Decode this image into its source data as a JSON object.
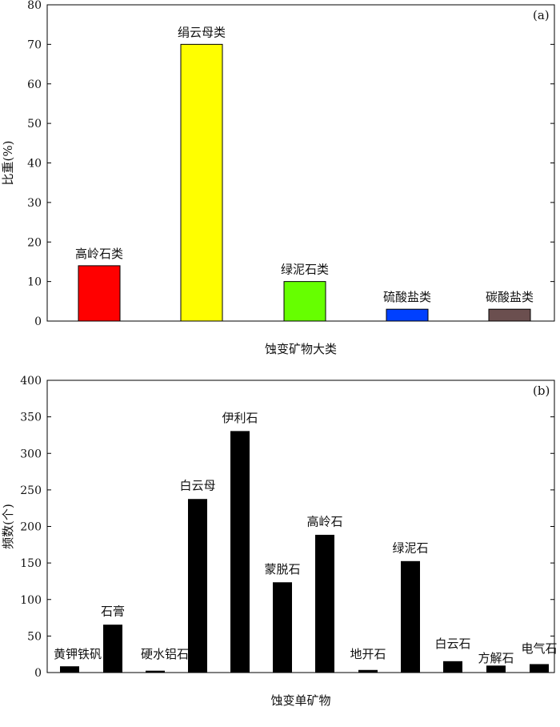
{
  "chart_data": [
    {
      "type": "bar",
      "panel_label": "(a)",
      "xlabel": "蚀变矿物大类",
      "ylabel": "比重(%)",
      "ylim": [
        0,
        80
      ],
      "yticks": [
        0,
        10,
        20,
        30,
        40,
        50,
        60,
        70,
        80
      ],
      "grid": false,
      "categories": [
        "高岭石类",
        "绢云母类",
        "绿泥石类",
        "硫酸盐类",
        "碳酸盐类"
      ],
      "values": [
        14,
        70,
        10,
        3,
        3
      ],
      "colors": [
        "#ff0000",
        "#ffff00",
        "#66ff00",
        "#0040ff",
        "#6b4f4f"
      ],
      "labels": [
        "高岭石类",
        "绢云母类",
        "绿泥石类",
        "硫酸盐类",
        "碳酸盐类"
      ]
    },
    {
      "type": "bar",
      "panel_label": "(b)",
      "xlabel": "蚀变单矿物",
      "ylabel": "频数(个)",
      "ylim": [
        0,
        400
      ],
      "yticks": [
        0,
        50,
        100,
        150,
        200,
        250,
        300,
        350,
        400
      ],
      "grid": false,
      "categories": [
        "黄钾铁矾",
        "石膏",
        "硬水铝石",
        "白云母",
        "伊利石",
        "蒙脱石",
        "高岭石",
        "地开石",
        "绿泥石",
        "白云石",
        "方解石",
        "电气石"
      ],
      "values": [
        8,
        65,
        2,
        237,
        330,
        123,
        188,
        3,
        152,
        15,
        9,
        11
      ],
      "colors": [
        "#000000",
        "#000000",
        "#000000",
        "#000000",
        "#000000",
        "#000000",
        "#000000",
        "#000000",
        "#000000",
        "#000000",
        "#000000",
        "#000000"
      ],
      "labels": [
        "黄钾铁矾",
        "石膏",
        "硬水铝石",
        "白云母",
        "伊利石",
        "蒙脱石",
        "高岭石",
        "地开石",
        "绿泥石",
        "白云石",
        "方解石",
        "电气石"
      ]
    }
  ]
}
